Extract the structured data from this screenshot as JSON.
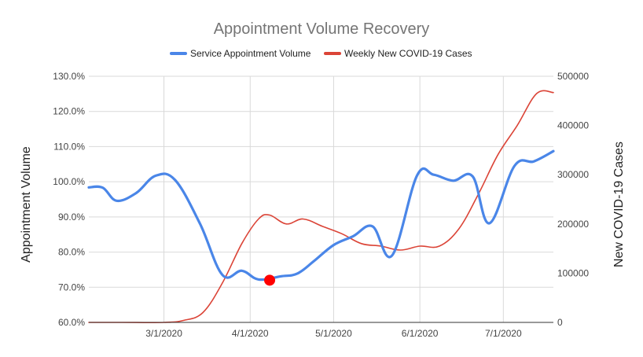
{
  "chart_data": {
    "type": "line",
    "title": "Appointment Volume Recovery",
    "legend_position": "top",
    "grid": true,
    "x_axis": {
      "type": "date",
      "min": "2020-02-03",
      "max": "2020-07-19",
      "tick_values": [
        "2020-03-01",
        "2020-04-01",
        "2020-05-01",
        "2020-06-01",
        "2020-07-01"
      ],
      "tick_labels": [
        "3/1/2020",
        "4/1/2020",
        "5/1/2020",
        "6/1/2020",
        "7/1/2020"
      ]
    },
    "y_left": {
      "label": "Appointment Volume",
      "min": 60,
      "max": 130,
      "ticks": [
        60,
        70,
        80,
        90,
        100,
        110,
        120,
        130
      ],
      "tick_labels": [
        "60.0%",
        "70.0%",
        "80.0%",
        "90.0%",
        "100.0%",
        "110.0%",
        "120.0%",
        "130.0%"
      ]
    },
    "y_right": {
      "label": "New COVID-19 Cases",
      "min": 0,
      "max": 500000,
      "ticks": [
        0,
        100000,
        200000,
        300000,
        400000,
        500000
      ],
      "tick_labels": [
        "0",
        "100000",
        "200000",
        "300000",
        "400000",
        "500000"
      ]
    },
    "series": [
      {
        "name": "Service Appointment Volume",
        "axis": "left",
        "color": "#4a86e8",
        "points": [
          [
            "2020-02-03",
            98.4
          ],
          [
            "2020-02-08",
            98.3
          ],
          [
            "2020-02-13",
            94.6
          ],
          [
            "2020-02-20",
            96.8
          ],
          [
            "2020-02-27",
            101.7
          ],
          [
            "2020-03-05",
            100.5
          ],
          [
            "2020-03-14",
            88.0
          ],
          [
            "2020-03-22",
            73.5
          ],
          [
            "2020-03-29",
            74.7
          ],
          [
            "2020-04-04",
            72.2
          ],
          [
            "2020-04-12",
            73.1
          ],
          [
            "2020-04-18",
            73.9
          ],
          [
            "2020-04-24",
            77.5
          ],
          [
            "2020-05-01",
            82.0
          ],
          [
            "2020-05-08",
            84.5
          ],
          [
            "2020-05-15",
            87.3
          ],
          [
            "2020-05-22",
            79.0
          ],
          [
            "2020-05-31",
            101.8
          ],
          [
            "2020-06-06",
            102.0
          ],
          [
            "2020-06-13",
            100.3
          ],
          [
            "2020-06-20",
            101.5
          ],
          [
            "2020-06-26",
            88.2
          ],
          [
            "2020-07-05",
            104.5
          ],
          [
            "2020-07-12",
            105.8
          ],
          [
            "2020-07-19",
            108.7
          ]
        ]
      },
      {
        "name": "Weekly New COVID-19 Cases",
        "axis": "right",
        "color": "#db4437",
        "points": [
          [
            "2020-02-03",
            0
          ],
          [
            "2020-02-15",
            0
          ],
          [
            "2020-03-01",
            0
          ],
          [
            "2020-03-08",
            4000
          ],
          [
            "2020-03-15",
            20000
          ],
          [
            "2020-03-22",
            80000
          ],
          [
            "2020-03-29",
            160000
          ],
          [
            "2020-04-04",
            210000
          ],
          [
            "2020-04-08",
            218000
          ],
          [
            "2020-04-14",
            200000
          ],
          [
            "2020-04-20",
            210000
          ],
          [
            "2020-04-27",
            195000
          ],
          [
            "2020-05-04",
            180000
          ],
          [
            "2020-05-11",
            160000
          ],
          [
            "2020-05-18",
            155000
          ],
          [
            "2020-05-25",
            147000
          ],
          [
            "2020-06-01",
            155000
          ],
          [
            "2020-06-08",
            155000
          ],
          [
            "2020-06-15",
            190000
          ],
          [
            "2020-06-22",
            260000
          ],
          [
            "2020-06-29",
            340000
          ],
          [
            "2020-07-06",
            400000
          ],
          [
            "2020-07-13",
            465000
          ],
          [
            "2020-07-19",
            467000
          ]
        ]
      }
    ],
    "highlight_point": {
      "series": "Service Appointment Volume",
      "x": "2020-04-08",
      "y": 72.0,
      "color": "#ff0000"
    }
  }
}
